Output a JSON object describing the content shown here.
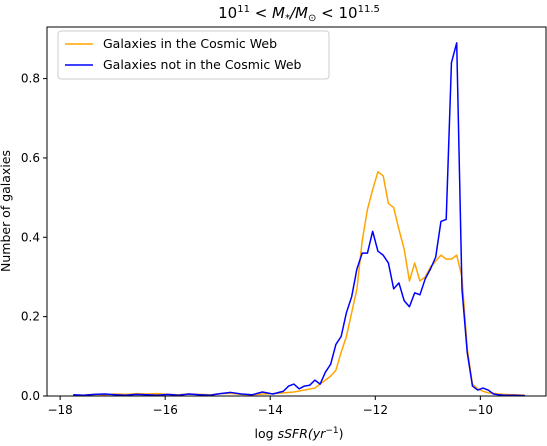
{
  "chart_data": {
    "type": "line",
    "title": "10^11 < M*/M⊙ < 10^11.5",
    "title_parts": {
      "lhs_base": "10",
      "lhs_exp": "11",
      "mid": " < M",
      "mid_sub": "*",
      "slash": "/M",
      "sun": "⊙",
      "rhs": " < 10",
      "rhs_exp": "11.5"
    },
    "xlabel": "log sSFR(yr^-1)",
    "xlabel_parts": {
      "log": "log",
      "var": "sSFR(yr",
      "exp": "−1",
      "close": ")"
    },
    "ylabel": "Number of galaxies",
    "xlim": [
      -18.25,
      -8.75
    ],
    "ylim": [
      0,
      0.93
    ],
    "x_ticks": [
      -18,
      -16,
      -14,
      -12,
      -10
    ],
    "x_tick_labels": [
      "−18",
      "−16",
      "−14",
      "−12",
      "−10"
    ],
    "y_ticks": [
      0.0,
      0.2,
      0.4,
      0.6,
      0.8
    ],
    "y_tick_labels": [
      "0.0",
      "0.2",
      "0.4",
      "0.6",
      "0.8"
    ],
    "grid": false,
    "legend_position": "upper-left",
    "series": [
      {
        "name": "Galaxies in the Cosmic Web",
        "color": "#ffa500",
        "x": [
          -17.75,
          -17.55,
          -17.35,
          -17.15,
          -16.95,
          -16.75,
          -16.55,
          -16.35,
          -16.15,
          -15.95,
          -15.75,
          -15.55,
          -15.35,
          -15.15,
          -14.95,
          -14.75,
          -14.55,
          -14.35,
          -14.15,
          -13.95,
          -13.75,
          -13.55,
          -13.35,
          -13.15,
          -12.95,
          -12.85,
          -12.75,
          -12.65,
          -12.55,
          -12.45,
          -12.35,
          -12.25,
          -12.15,
          -12.05,
          -11.95,
          -11.85,
          -11.75,
          -11.65,
          -11.55,
          -11.45,
          -11.35,
          -11.25,
          -11.15,
          -11.05,
          -10.95,
          -10.85,
          -10.75,
          -10.65,
          -10.55,
          -10.45,
          -10.35,
          -10.25,
          -10.15,
          -10.05,
          -9.95,
          -9.85,
          -9.75,
          -9.65,
          -9.55,
          -9.35,
          -9.15
        ],
        "y": [
          0.002,
          0.002,
          0.004,
          0.003,
          0.005,
          0.004,
          0.006,
          0.005,
          0.006,
          0.004,
          0.003,
          0.005,
          0.004,
          0.003,
          0.006,
          0.007,
          0.004,
          0.003,
          0.005,
          0.006,
          0.008,
          0.01,
          0.015,
          0.02,
          0.04,
          0.05,
          0.065,
          0.11,
          0.15,
          0.21,
          0.27,
          0.39,
          0.47,
          0.52,
          0.565,
          0.555,
          0.485,
          0.475,
          0.42,
          0.37,
          0.29,
          0.335,
          0.29,
          0.3,
          0.325,
          0.34,
          0.355,
          0.345,
          0.345,
          0.355,
          0.3,
          0.12,
          0.03,
          0.018,
          0.012,
          0.008,
          0.007,
          0.005,
          0.004,
          0.003,
          0.002
        ]
      },
      {
        "name": "Galaxies not in the Cosmic Web",
        "color": "#0000ff",
        "x": [
          -17.75,
          -17.55,
          -17.35,
          -17.15,
          -16.95,
          -16.75,
          -16.55,
          -16.35,
          -16.15,
          -15.95,
          -15.75,
          -15.55,
          -15.35,
          -15.15,
          -14.95,
          -14.75,
          -14.55,
          -14.35,
          -14.15,
          -13.95,
          -13.75,
          -13.65,
          -13.55,
          -13.45,
          -13.35,
          -13.25,
          -13.15,
          -13.05,
          -12.95,
          -12.85,
          -12.75,
          -12.65,
          -12.55,
          -12.45,
          -12.35,
          -12.25,
          -12.15,
          -12.05,
          -11.95,
          -11.85,
          -11.75,
          -11.65,
          -11.55,
          -11.45,
          -11.35,
          -11.25,
          -11.15,
          -11.05,
          -10.95,
          -10.85,
          -10.75,
          -10.65,
          -10.55,
          -10.45,
          -10.35,
          -10.25,
          -10.15,
          -10.05,
          -9.95,
          -9.85,
          -9.75,
          -9.65,
          -9.55,
          -9.35,
          -9.15
        ],
        "y": [
          0.003,
          0.002,
          0.004,
          0.005,
          0.003,
          0.002,
          0.004,
          0.003,
          0.002,
          0.004,
          0.002,
          0.005,
          0.003,
          0.002,
          0.006,
          0.009,
          0.005,
          0.003,
          0.01,
          0.005,
          0.012,
          0.025,
          0.03,
          0.018,
          0.025,
          0.027,
          0.04,
          0.03,
          0.06,
          0.08,
          0.13,
          0.15,
          0.21,
          0.25,
          0.32,
          0.36,
          0.36,
          0.415,
          0.365,
          0.355,
          0.335,
          0.27,
          0.285,
          0.24,
          0.225,
          0.26,
          0.255,
          0.295,
          0.32,
          0.35,
          0.44,
          0.445,
          0.84,
          0.89,
          0.27,
          0.11,
          0.025,
          0.015,
          0.02,
          0.015,
          0.005,
          0.003,
          0.002,
          0.002,
          0.001
        ]
      }
    ]
  }
}
